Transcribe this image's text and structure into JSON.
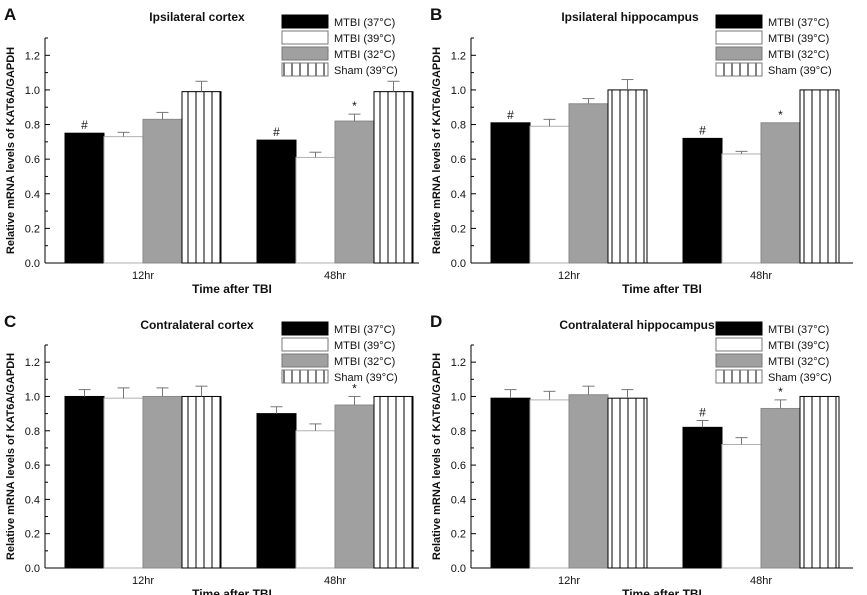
{
  "chart_data": [
    {
      "panel_label": "A",
      "type": "bar",
      "title": "Ipsilateral cortex",
      "xlabel": "Time after TBI",
      "ylabel": "Relative mRNA levels of KAT6A/GAPDH",
      "ylim": [
        0,
        1.3
      ],
      "yticks": [
        "0.0",
        "0.2",
        "0.4",
        "0.6",
        "0.8",
        "1.0",
        "1.2"
      ],
      "categories": [
        "12hr",
        "48hr"
      ],
      "legend_position": "top-right",
      "series": [
        {
          "name": "MTBI (37°C)",
          "values": [
            0.75,
            0.71
          ],
          "errors": [
            0.0,
            0.0
          ],
          "marks": [
            "#",
            "#"
          ]
        },
        {
          "name": "MTBI (39°C)",
          "values": [
            0.73,
            0.61
          ],
          "errors": [
            0.025,
            0.03
          ],
          "marks": [
            "",
            ""
          ]
        },
        {
          "name": "MTBI (32°C)",
          "values": [
            0.83,
            0.82
          ],
          "errors": [
            0.04,
            0.04
          ],
          "marks": [
            "",
            "*"
          ]
        },
        {
          "name": "Sham (39°C)",
          "values": [
            0.99,
            0.99
          ],
          "errors": [
            0.06,
            0.06
          ],
          "marks": [
            "",
            ""
          ]
        }
      ]
    },
    {
      "panel_label": "B",
      "type": "bar",
      "title": "Ipsilateral hippocampus",
      "xlabel": "Time after TBI",
      "ylabel": "Relative mRNA levels of KAT6A/GAPDH",
      "ylim": [
        0,
        1.3
      ],
      "yticks": [
        "0.0",
        "0.2",
        "0.4",
        "0.6",
        "0.8",
        "1.0",
        "1.2"
      ],
      "categories": [
        "12hr",
        "48hr"
      ],
      "legend_position": "top-right",
      "series": [
        {
          "name": "MTBI (37°C)",
          "values": [
            0.81,
            0.72
          ],
          "errors": [
            0.0,
            0.0
          ],
          "marks": [
            "#",
            "#"
          ]
        },
        {
          "name": "MTBI (39°C)",
          "values": [
            0.79,
            0.63
          ],
          "errors": [
            0.04,
            0.015
          ],
          "marks": [
            "",
            ""
          ]
        },
        {
          "name": "MTBI (32°C)",
          "values": [
            0.92,
            0.81
          ],
          "errors": [
            0.03,
            0.0
          ],
          "marks": [
            "",
            "*"
          ]
        },
        {
          "name": "Sham (39°C)",
          "values": [
            1.0,
            1.0
          ],
          "errors": [
            0.06,
            0.0
          ],
          "marks": [
            "",
            ""
          ]
        }
      ]
    },
    {
      "panel_label": "C",
      "type": "bar",
      "title": "Contralateral cortex",
      "xlabel": "Time after TBI",
      "ylabel": "Relative mRNA levels of KAT6A/GAPDH",
      "ylim": [
        0,
        1.3
      ],
      "yticks": [
        "0.0",
        "0.2",
        "0.4",
        "0.6",
        "0.8",
        "1.0",
        "1.2"
      ],
      "categories": [
        "12hr",
        "48hr"
      ],
      "legend_position": "top-right",
      "series": [
        {
          "name": "MTBI (37°C)",
          "values": [
            1.0,
            0.9
          ],
          "errors": [
            0.04,
            0.04
          ],
          "marks": [
            "",
            ""
          ]
        },
        {
          "name": "MTBI (39°C)",
          "values": [
            0.99,
            0.8
          ],
          "errors": [
            0.06,
            0.04
          ],
          "marks": [
            "",
            ""
          ]
        },
        {
          "name": "MTBI (32°C)",
          "values": [
            1.0,
            0.95
          ],
          "errors": [
            0.05,
            0.05
          ],
          "marks": [
            "",
            "*"
          ]
        },
        {
          "name": "Sham (39°C)",
          "values": [
            1.0,
            1.0
          ],
          "errors": [
            0.06,
            0.0
          ],
          "marks": [
            "",
            ""
          ]
        }
      ]
    },
    {
      "panel_label": "D",
      "type": "bar",
      "title": "Contralateral hippocampus",
      "xlabel": "Time after TBI",
      "ylabel": "Relative mRNA levels of KAT6A/GAPDH",
      "ylim": [
        0,
        1.3
      ],
      "yticks": [
        "0.0",
        "0.2",
        "0.4",
        "0.6",
        "0.8",
        "1.0",
        "1.2"
      ],
      "categories": [
        "12hr",
        "48hr"
      ],
      "legend_position": "top-right",
      "series": [
        {
          "name": "MTBI (37°C)",
          "values": [
            0.99,
            0.82
          ],
          "errors": [
            0.05,
            0.04
          ],
          "marks": [
            "",
            "#"
          ]
        },
        {
          "name": "MTBI (39°C)",
          "values": [
            0.98,
            0.72
          ],
          "errors": [
            0.05,
            0.04
          ],
          "marks": [
            "",
            ""
          ]
        },
        {
          "name": "MTBI (32°C)",
          "values": [
            1.01,
            0.93
          ],
          "errors": [
            0.05,
            0.05
          ],
          "marks": [
            "",
            "*"
          ]
        },
        {
          "name": "Sham (39°C)",
          "values": [
            0.99,
            1.0
          ],
          "errors": [
            0.05,
            0.0
          ],
          "marks": [
            "",
            ""
          ]
        }
      ]
    }
  ]
}
